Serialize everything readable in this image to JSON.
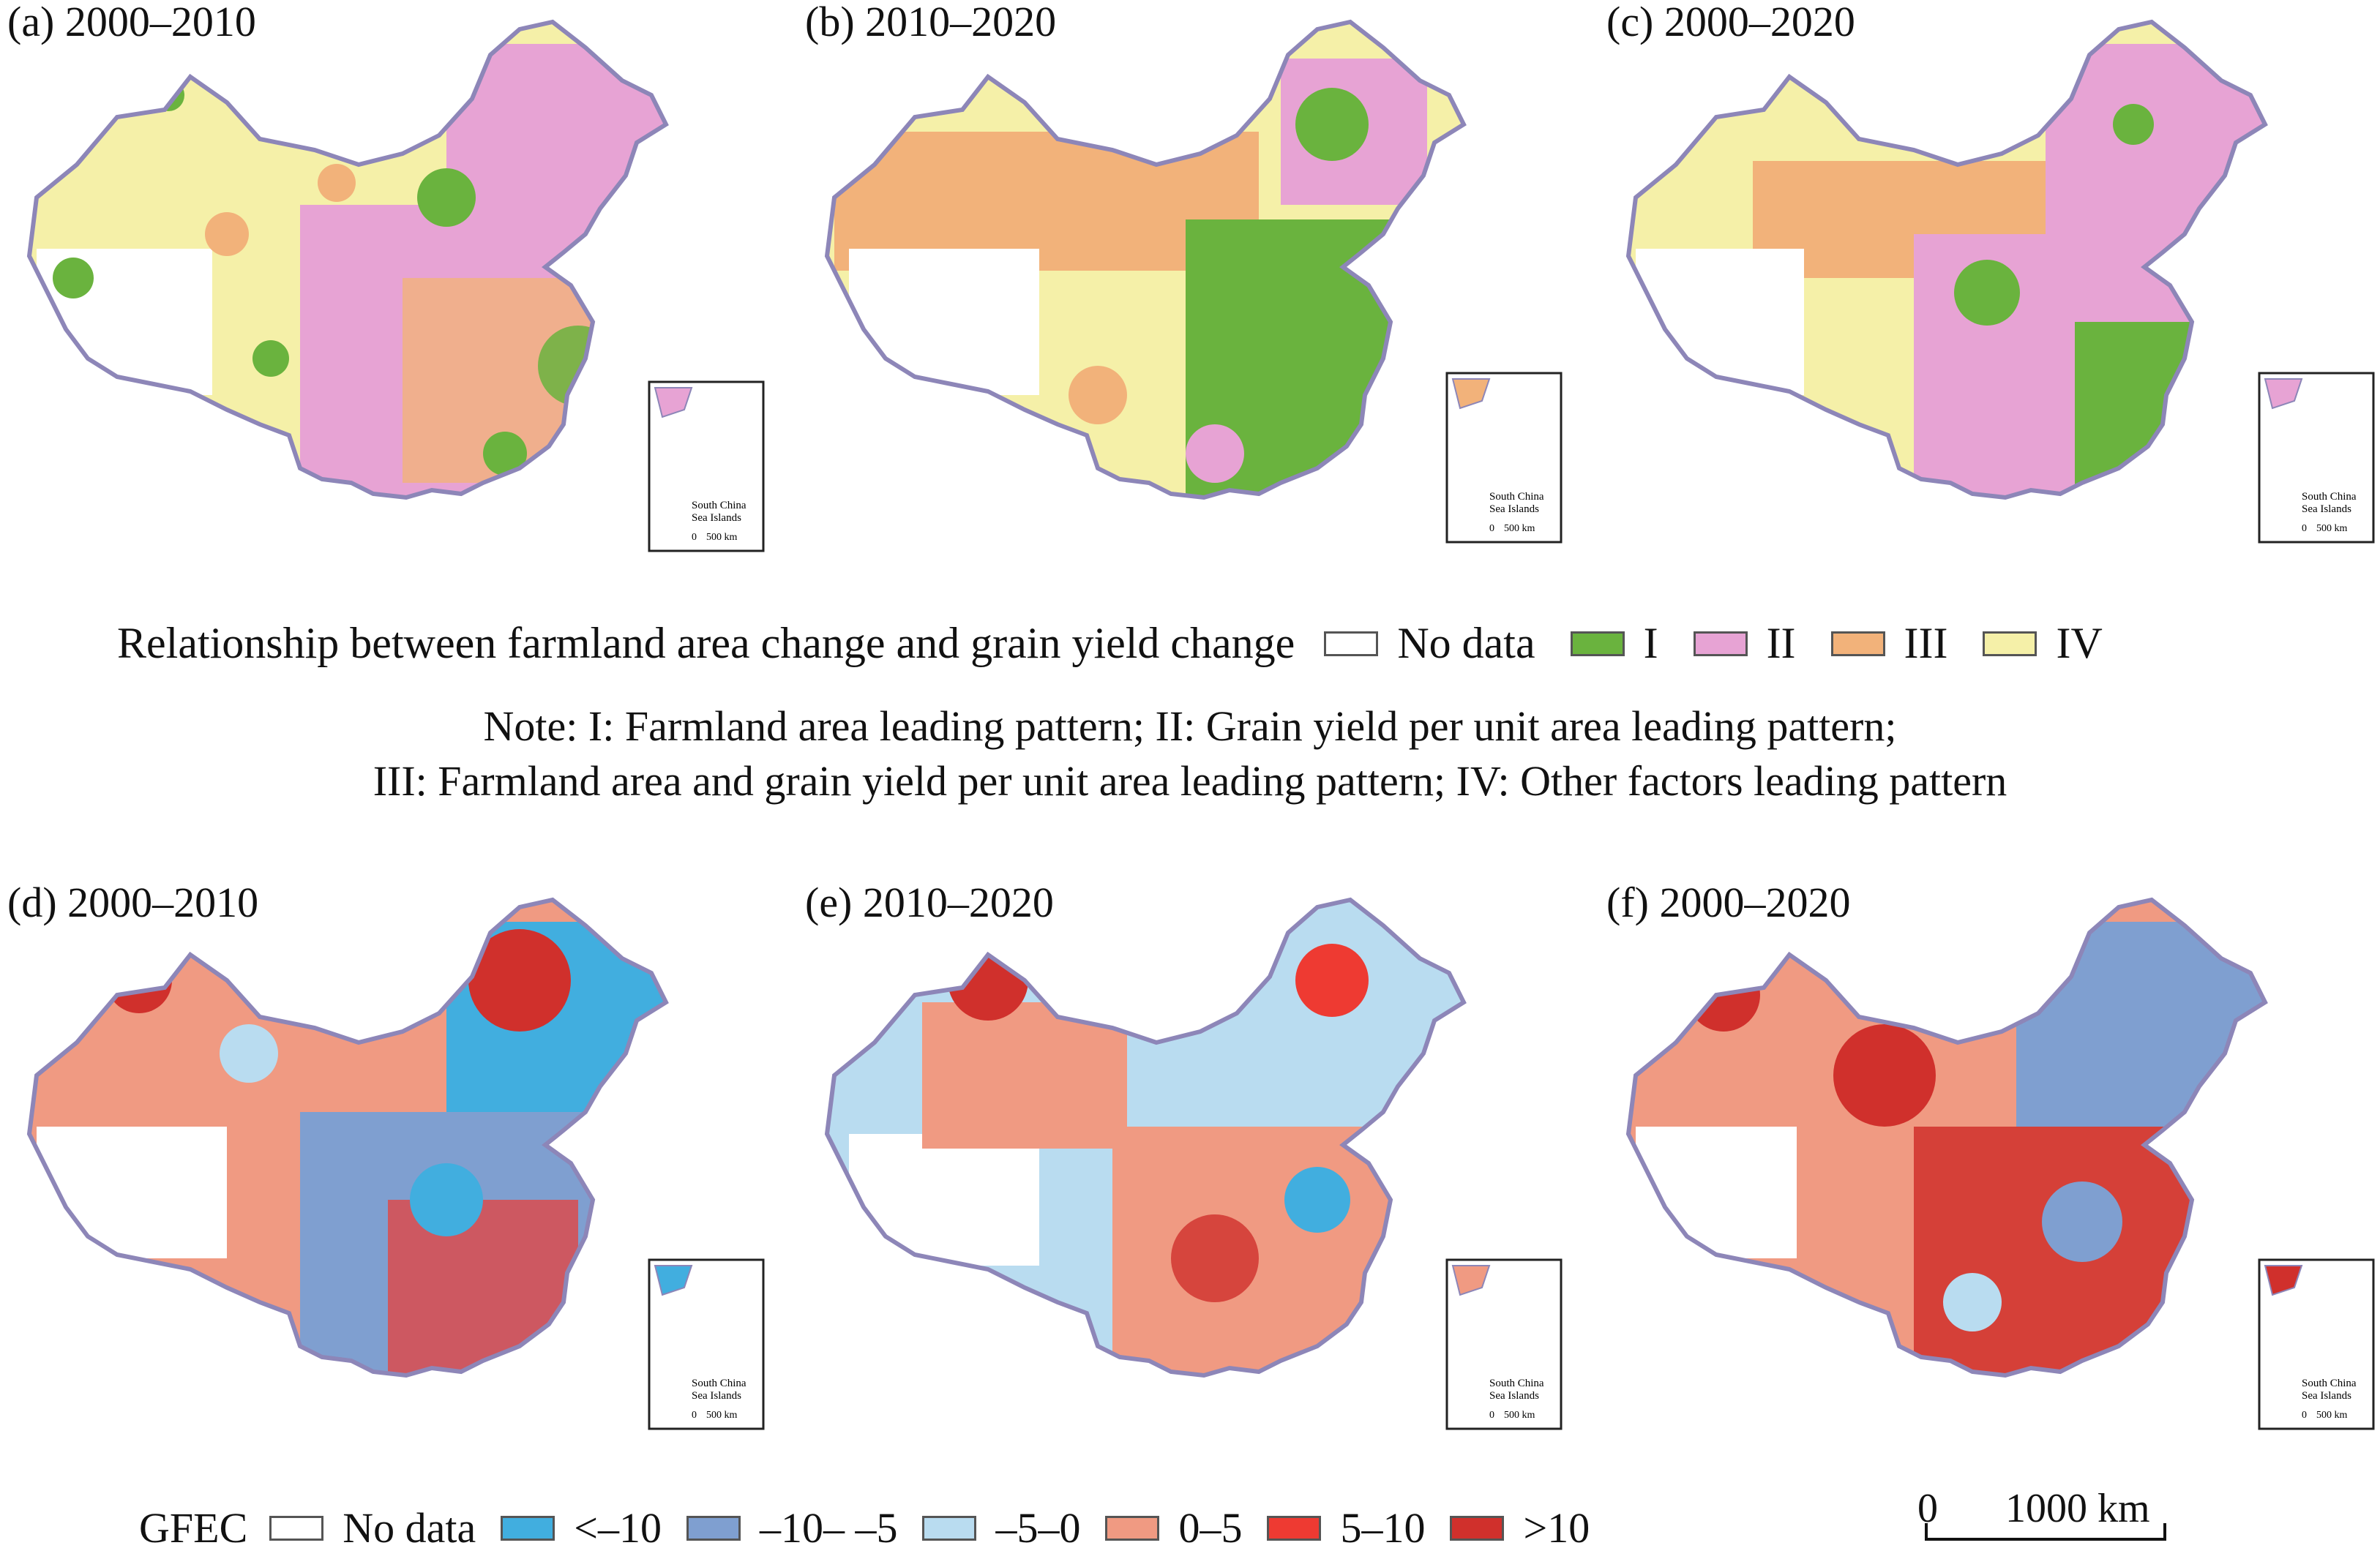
{
  "top_panels": [
    {
      "label": "(a) 2000–2010"
    },
    {
      "label": "(b) 2010–2020"
    },
    {
      "label": "(c) 2000–2020"
    }
  ],
  "bottom_panels": [
    {
      "label": "(d) 2000–2010"
    },
    {
      "label": "(e) 2010–2020"
    },
    {
      "label": "(f) 2000–2020"
    }
  ],
  "legend_top": {
    "title": "Relationship between farmland area change and grain yield change",
    "items": [
      {
        "label": "No data",
        "color": "#ffffff"
      },
      {
        "label": "I",
        "color": "#6ab33e"
      },
      {
        "label": "II",
        "color": "#e7a3d4"
      },
      {
        "label": "III",
        "color": "#f2b27a"
      },
      {
        "label": "IV",
        "color": "#f5f0a8"
      }
    ]
  },
  "note": {
    "line1": "Note: I: Farmland area leading pattern; II: Grain yield per unit area leading pattern;",
    "line2": "III: Farmland area and grain yield per unit area leading pattern; IV: Other factors leading pattern"
  },
  "legend_bottom": {
    "title": "GFEC",
    "items": [
      {
        "label": "No data",
        "color": "#ffffff"
      },
      {
        "label": "<–10",
        "color": "#41aedf"
      },
      {
        "label": "–10– –5",
        "color": "#7f9fd0"
      },
      {
        "label": "–5–0",
        "color": "#b9dcf0"
      },
      {
        "label": "0–5",
        "color": "#f09a82"
      },
      {
        "label": "5–10",
        "color": "#ee3a32"
      },
      {
        "label": ">10",
        "color": "#d0302c"
      }
    ]
  },
  "scale_bar": {
    "start": "0",
    "end": "1000 km"
  },
  "inset": {
    "title_line1": "South China",
    "title_line2": "Sea Islands",
    "scale_start": "0",
    "scale_end": "500 km"
  },
  "colors": {
    "border": "#8d86b8",
    "coast": "#4a7fc1"
  }
}
